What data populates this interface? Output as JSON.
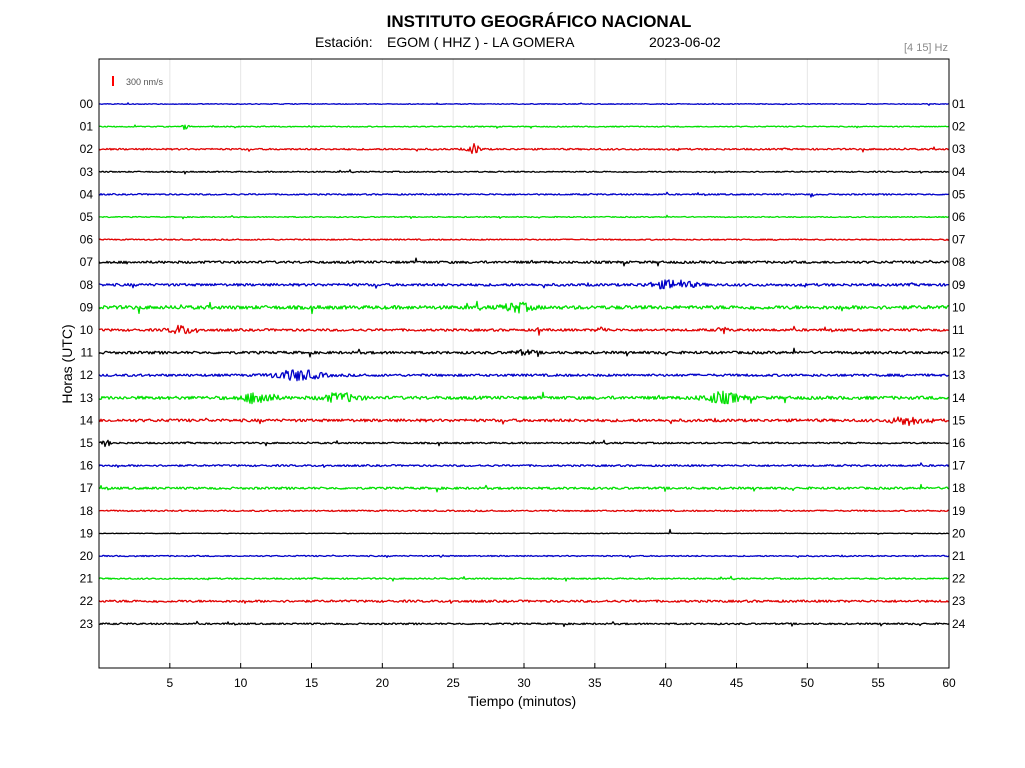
{
  "header": {
    "title": "INSTITUTO GEOGRÁFICO NACIONAL",
    "station_label": "Estación:",
    "station": "EGOM ( HHZ ) - LA GOMERA",
    "date": "2023-06-02",
    "filter": "[4 15] Hz"
  },
  "scale_bar": {
    "label": "300 nm/s",
    "color": "#ff0000"
  },
  "colors": {
    "blue": "#0000c8",
    "green": "#00e000",
    "red": "#e00000",
    "black": "#000000",
    "grid": "#e6e6e6"
  },
  "chart_data": {
    "type": "line",
    "title": "INSTITUTO GEOGRÁFICO NACIONAL",
    "xlabel": "Tiempo (minutos)",
    "ylabel": "Horas (UTC)",
    "xlim": [
      0,
      60
    ],
    "x_ticks": [
      5,
      10,
      15,
      20,
      25,
      30,
      35,
      40,
      45,
      50,
      55,
      60
    ],
    "grid": true,
    "trace_color_cycle": [
      "blue",
      "green",
      "red",
      "black"
    ],
    "left_labels": [
      "00",
      "01",
      "02",
      "03",
      "04",
      "05",
      "06",
      "07",
      "08",
      "09",
      "10",
      "11",
      "12",
      "13",
      "14",
      "15",
      "16",
      "17",
      "18",
      "19",
      "20",
      "21",
      "22",
      "23"
    ],
    "right_labels": [
      "01",
      "02",
      "03",
      "04",
      "05",
      "06",
      "07",
      "08",
      "09",
      "10",
      "11",
      "12",
      "13",
      "14",
      "15",
      "16",
      "17",
      "18",
      "19",
      "20",
      "21",
      "22",
      "23",
      "24"
    ],
    "traces": [
      {
        "hour": "00",
        "color": "blue",
        "noise": 0.4,
        "bursts": []
      },
      {
        "hour": "01",
        "color": "green",
        "noise": 0.5,
        "bursts": [
          {
            "t": 6.1,
            "w": 0.4,
            "a": 3
          }
        ]
      },
      {
        "hour": "02",
        "color": "red",
        "noise": 0.8,
        "bursts": [
          {
            "t": 26.5,
            "w": 0.8,
            "a": 5
          }
        ]
      },
      {
        "hour": "03",
        "color": "black",
        "noise": 0.6,
        "bursts": []
      },
      {
        "hour": "04",
        "color": "blue",
        "noise": 0.7,
        "bursts": [
          {
            "t": 50.3,
            "w": 0.2,
            "a": 3
          }
        ]
      },
      {
        "hour": "05",
        "color": "green",
        "noise": 0.5,
        "bursts": []
      },
      {
        "hour": "06",
        "color": "red",
        "noise": 0.6,
        "bursts": []
      },
      {
        "hour": "07",
        "color": "black",
        "noise": 1.2,
        "bursts": []
      },
      {
        "hour": "08",
        "color": "blue",
        "noise": 1.3,
        "bursts": [
          {
            "t": 40.5,
            "w": 3.0,
            "a": 4
          }
        ]
      },
      {
        "hour": "09",
        "color": "green",
        "noise": 1.8,
        "bursts": [
          {
            "t": 29.5,
            "w": 2.0,
            "a": 4
          }
        ]
      },
      {
        "hour": "10",
        "color": "red",
        "noise": 1.2,
        "bursts": [
          {
            "t": 5.8,
            "w": 1.6,
            "a": 4
          },
          {
            "t": 31.0,
            "w": 0.15,
            "a": 9
          },
          {
            "t": 35.5,
            "w": 0.6,
            "a": 3
          },
          {
            "t": 44.0,
            "w": 0.6,
            "a": 3
          }
        ]
      },
      {
        "hour": "11",
        "color": "black",
        "noise": 1.3,
        "bursts": [
          {
            "t": 30.0,
            "w": 1.5,
            "a": 2
          }
        ]
      },
      {
        "hour": "12",
        "color": "blue",
        "noise": 1.2,
        "bursts": [
          {
            "t": 14.0,
            "w": 3.2,
            "a": 5
          }
        ]
      },
      {
        "hour": "13",
        "color": "green",
        "noise": 1.6,
        "bursts": [
          {
            "t": 11.3,
            "w": 2.0,
            "a": 6
          },
          {
            "t": 17.0,
            "w": 2.5,
            "a": 4
          },
          {
            "t": 44.0,
            "w": 2.6,
            "a": 5
          }
        ]
      },
      {
        "hour": "14",
        "color": "red",
        "noise": 1.4,
        "bursts": [
          {
            "t": 57.0,
            "w": 2.0,
            "a": 4
          }
        ]
      },
      {
        "hour": "15",
        "color": "black",
        "noise": 0.8,
        "bursts": [
          {
            "t": 0.5,
            "w": 0.6,
            "a": 3
          }
        ]
      },
      {
        "hour": "16",
        "color": "blue",
        "noise": 0.9,
        "bursts": []
      },
      {
        "hour": "17",
        "color": "green",
        "noise": 1.1,
        "bursts": []
      },
      {
        "hour": "18",
        "color": "red",
        "noise": 0.7,
        "bursts": []
      },
      {
        "hour": "19",
        "color": "black",
        "noise": 0.3,
        "bursts": [
          {
            "t": 40.3,
            "w": 0.1,
            "a": 3
          }
        ]
      },
      {
        "hour": "20",
        "color": "blue",
        "noise": 0.6,
        "bursts": [
          {
            "t": 24.2,
            "w": 0.2,
            "a": 2
          }
        ]
      },
      {
        "hour": "21",
        "color": "green",
        "noise": 0.7,
        "bursts": []
      },
      {
        "hour": "22",
        "color": "red",
        "noise": 1.1,
        "bursts": []
      },
      {
        "hour": "23",
        "color": "black",
        "noise": 0.8,
        "bursts": []
      }
    ]
  }
}
